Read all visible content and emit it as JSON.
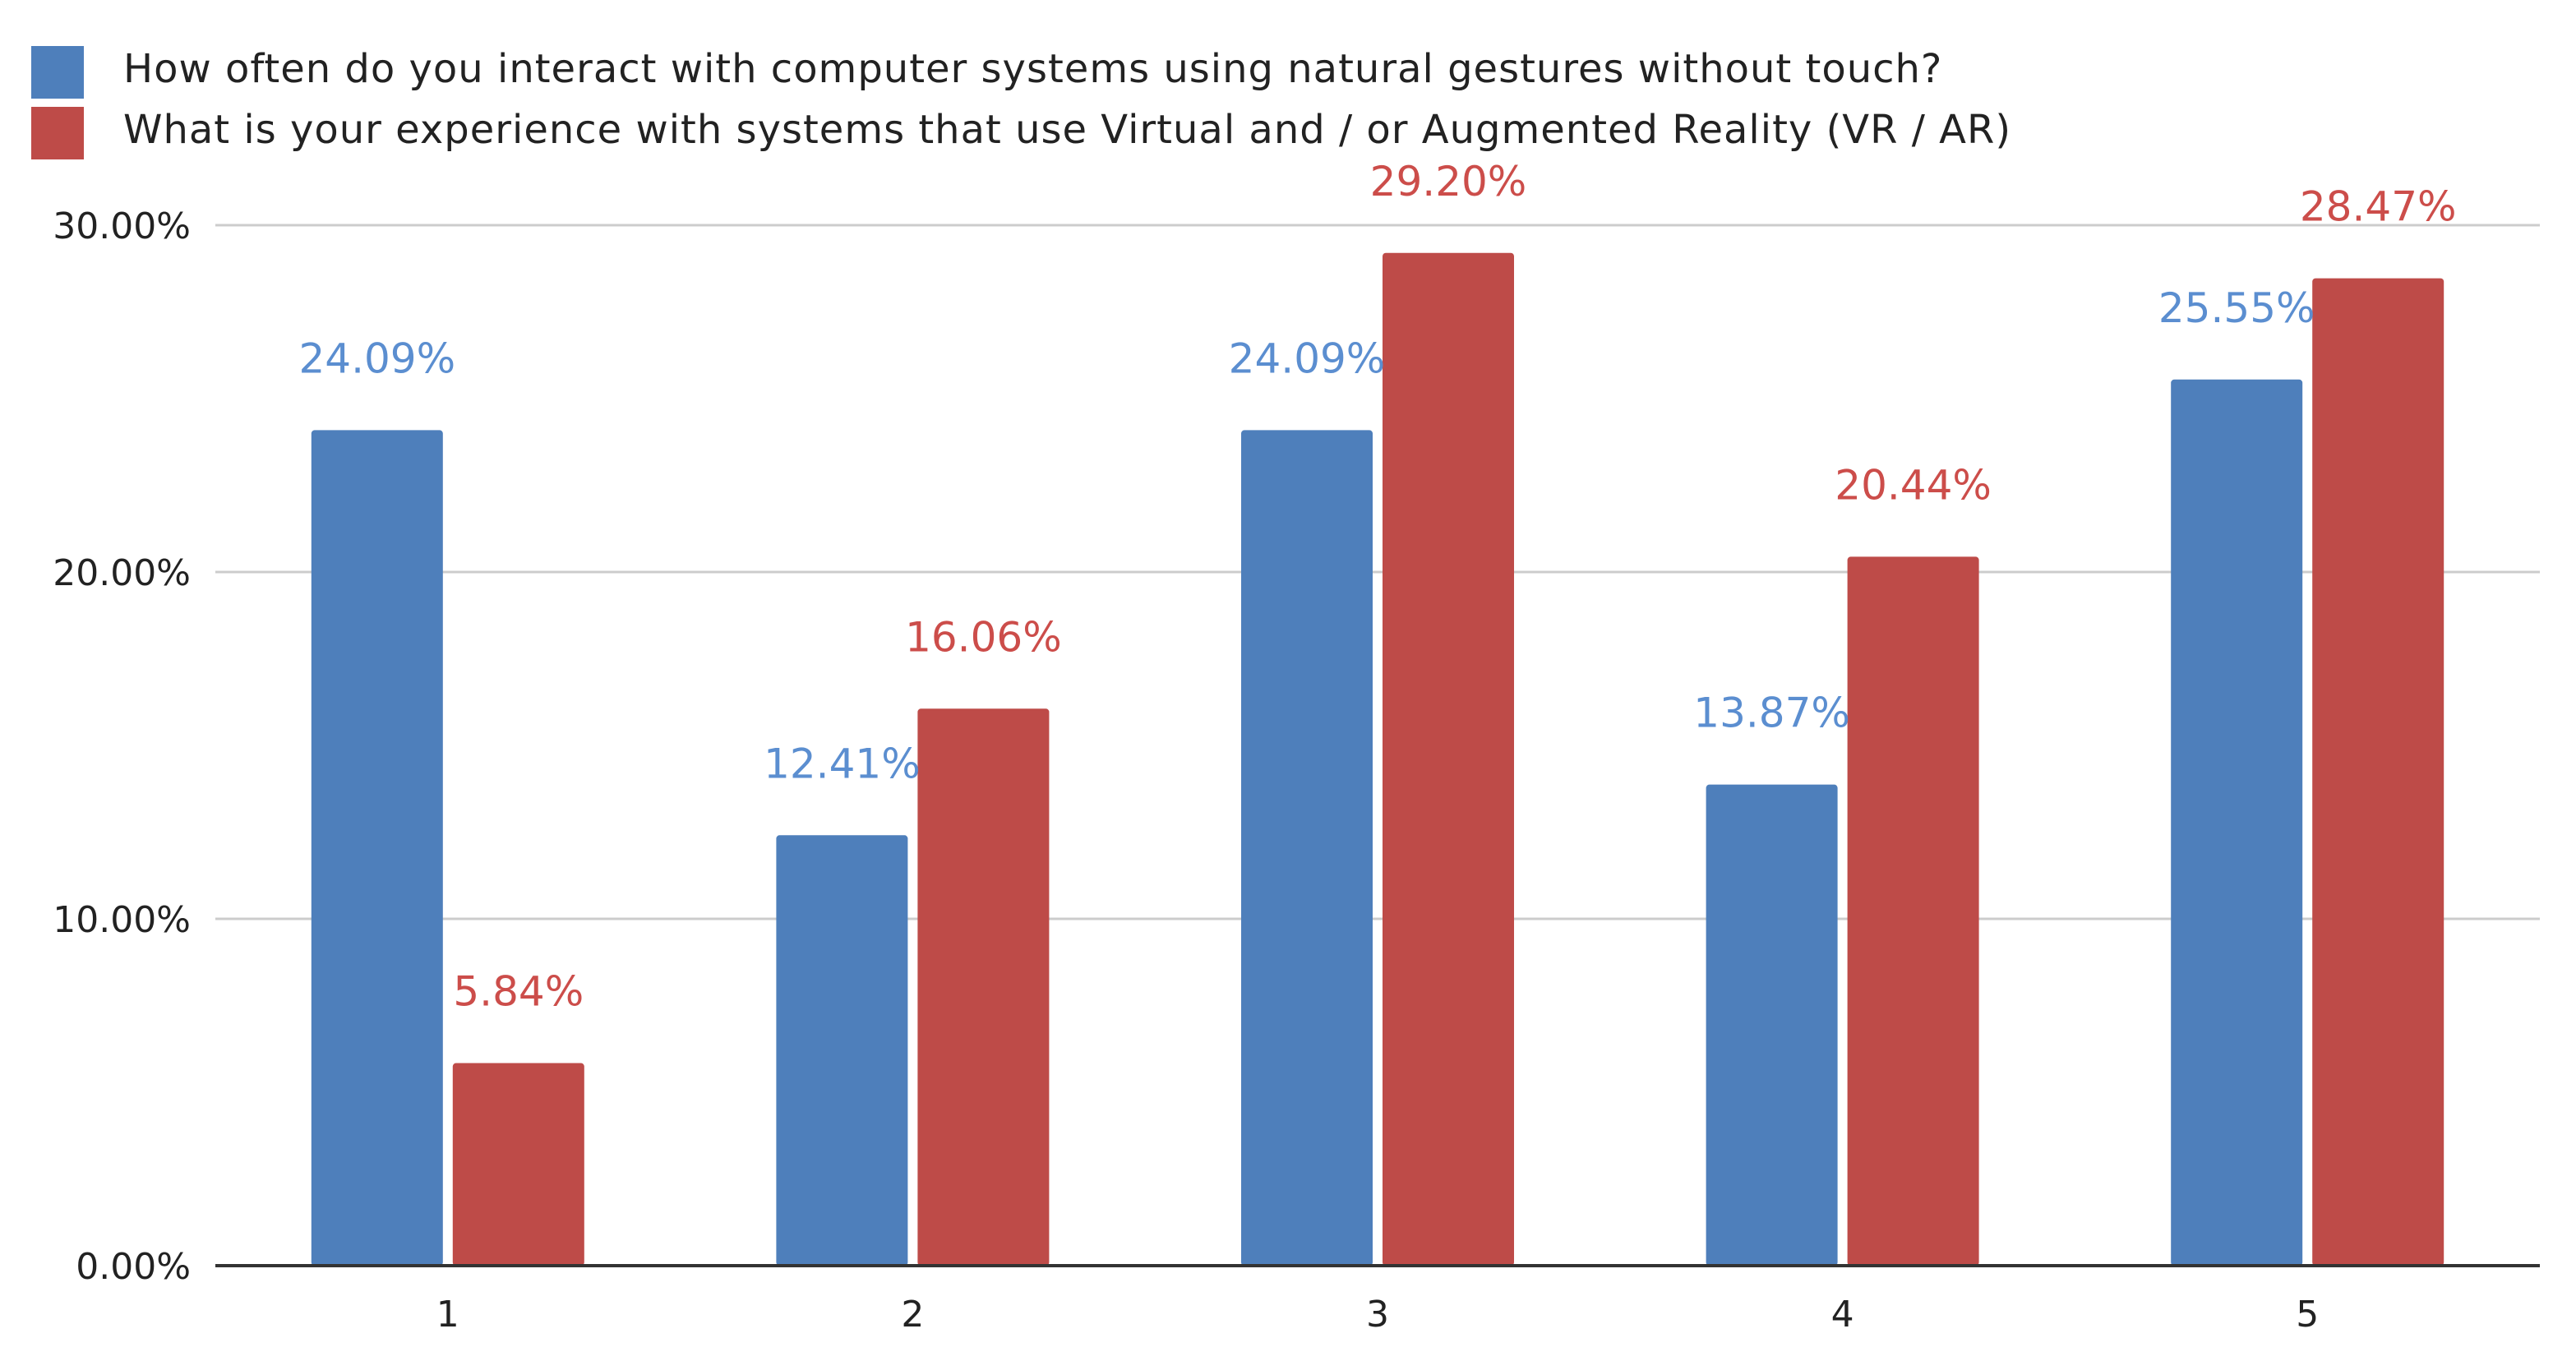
{
  "chart_data": {
    "type": "bar",
    "categories": [
      "1",
      "2",
      "3",
      "4",
      "5"
    ],
    "series": [
      {
        "name": "How often do you interact with computer systems using natural gestures without touch?",
        "values": [
          24.09,
          12.41,
          24.09,
          13.87,
          25.55
        ],
        "labels": [
          "24.09%",
          "12.41%",
          "24.09%",
          "13.87%",
          "25.55%"
        ],
        "color": "#4e7fbb"
      },
      {
        "name": "What is your experience with systems that use Virtual and / or Augmented Reality (VR / AR)",
        "values": [
          5.84,
          16.06,
          29.2,
          20.44,
          28.47
        ],
        "labels": [
          "5.84%",
          "16.06%",
          "29.20%",
          "20.44%",
          "28.47%"
        ],
        "color": "#be4b48"
      }
    ],
    "yticks": [
      "0.00%",
      "10.00%",
      "20.00%",
      "30.00%"
    ],
    "ytick_values": [
      0,
      10,
      20,
      30
    ],
    "ylim": [
      0,
      30
    ],
    "grid": true,
    "legend_position": "top-left",
    "xlabel": "",
    "ylabel": "",
    "title": ""
  },
  "colors": {
    "blue_label": "#5b8ed0",
    "red_label": "#cc4d4a",
    "grid": "#cccccc",
    "axis": "#333333"
  }
}
